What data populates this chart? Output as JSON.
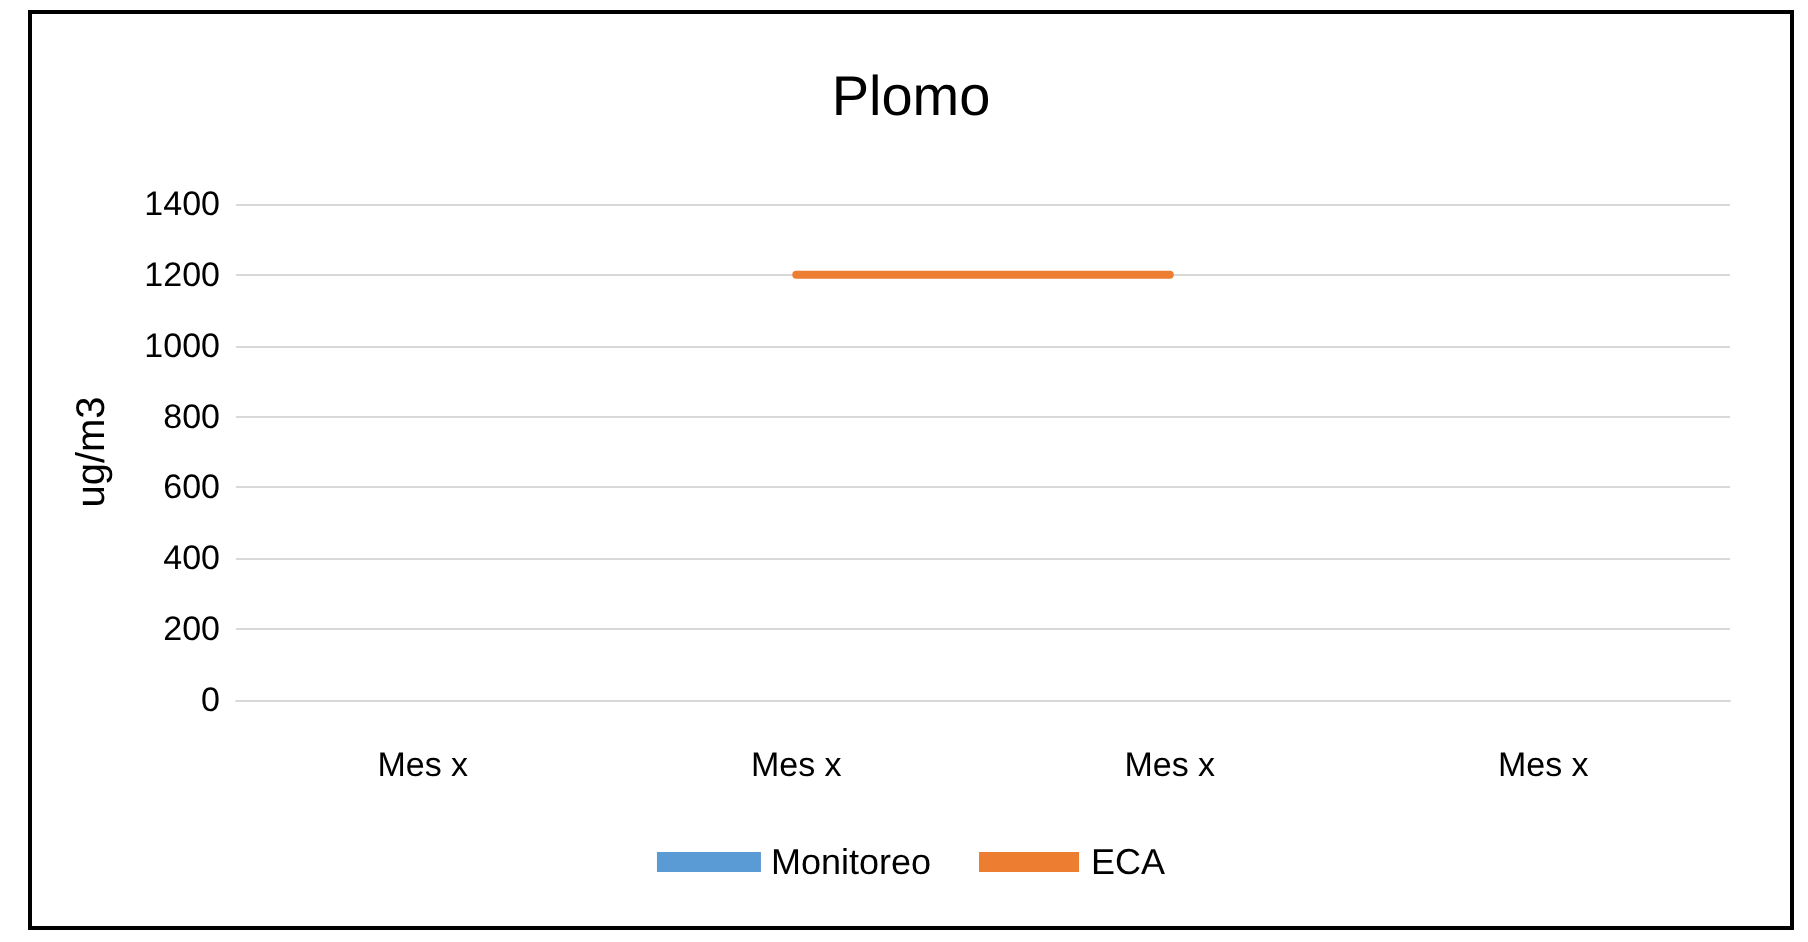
{
  "chart_data": {
    "type": "bar",
    "title": "Plomo",
    "ylabel": "ug/m3",
    "categories": [
      "Mes x",
      "Mes x",
      "Mes x",
      "Mes x"
    ],
    "series": [
      {
        "name": "Monitoreo",
        "color": "#5b9bd5",
        "values": [
          null,
          null,
          null,
          null
        ]
      },
      {
        "name": "ECA",
        "type": "line",
        "color": "#ed7d31",
        "values": [
          null,
          1200,
          1200,
          null
        ]
      }
    ],
    "ylim": [
      0,
      1400
    ],
    "yticks": [
      0,
      200,
      400,
      600,
      800,
      1000,
      1200,
      1400
    ],
    "grid": "y",
    "legend": "bottom",
    "marker": "none"
  }
}
